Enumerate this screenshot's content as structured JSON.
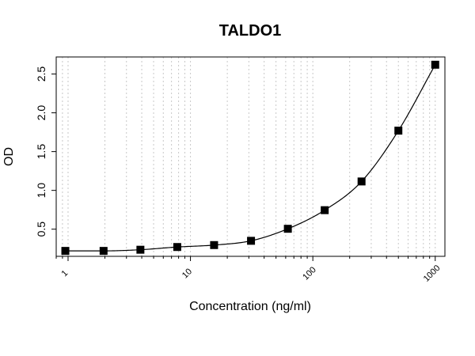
{
  "chart_data": {
    "type": "scatter",
    "title": "TALDO1",
    "xlabel": "Concentration (ng/ml)",
    "ylabel": "OD",
    "x_scale": "log",
    "xlim": [
      0.8,
      1200
    ],
    "ylim": [
      0.15,
      2.72
    ],
    "x_ticks": [
      1,
      10,
      100,
      1000
    ],
    "x_tick_labels": [
      "1",
      "10",
      "100",
      "1000"
    ],
    "y_ticks": [
      0.5,
      1.0,
      1.5,
      2.0,
      2.5
    ],
    "y_tick_labels": [
      "0.5",
      "1.0",
      "1.5",
      "2.0",
      "2.5"
    ],
    "grid": "vertical dotted lines at log-scale minor ticks",
    "fit_curve": "smooth line",
    "series": [
      {
        "x": [
          0.95,
          1.95,
          3.9,
          7.8,
          15.6,
          31.25,
          62.5,
          125,
          250,
          500,
          1000
        ],
        "y": [
          0.22,
          0.22,
          0.235,
          0.27,
          0.295,
          0.35,
          0.505,
          0.745,
          1.115,
          1.77,
          2.62
        ]
      }
    ],
    "colors": {
      "marker": "#000000",
      "curve": "#000000",
      "grid": "#c8c8c8",
      "axis": "#000000"
    }
  }
}
